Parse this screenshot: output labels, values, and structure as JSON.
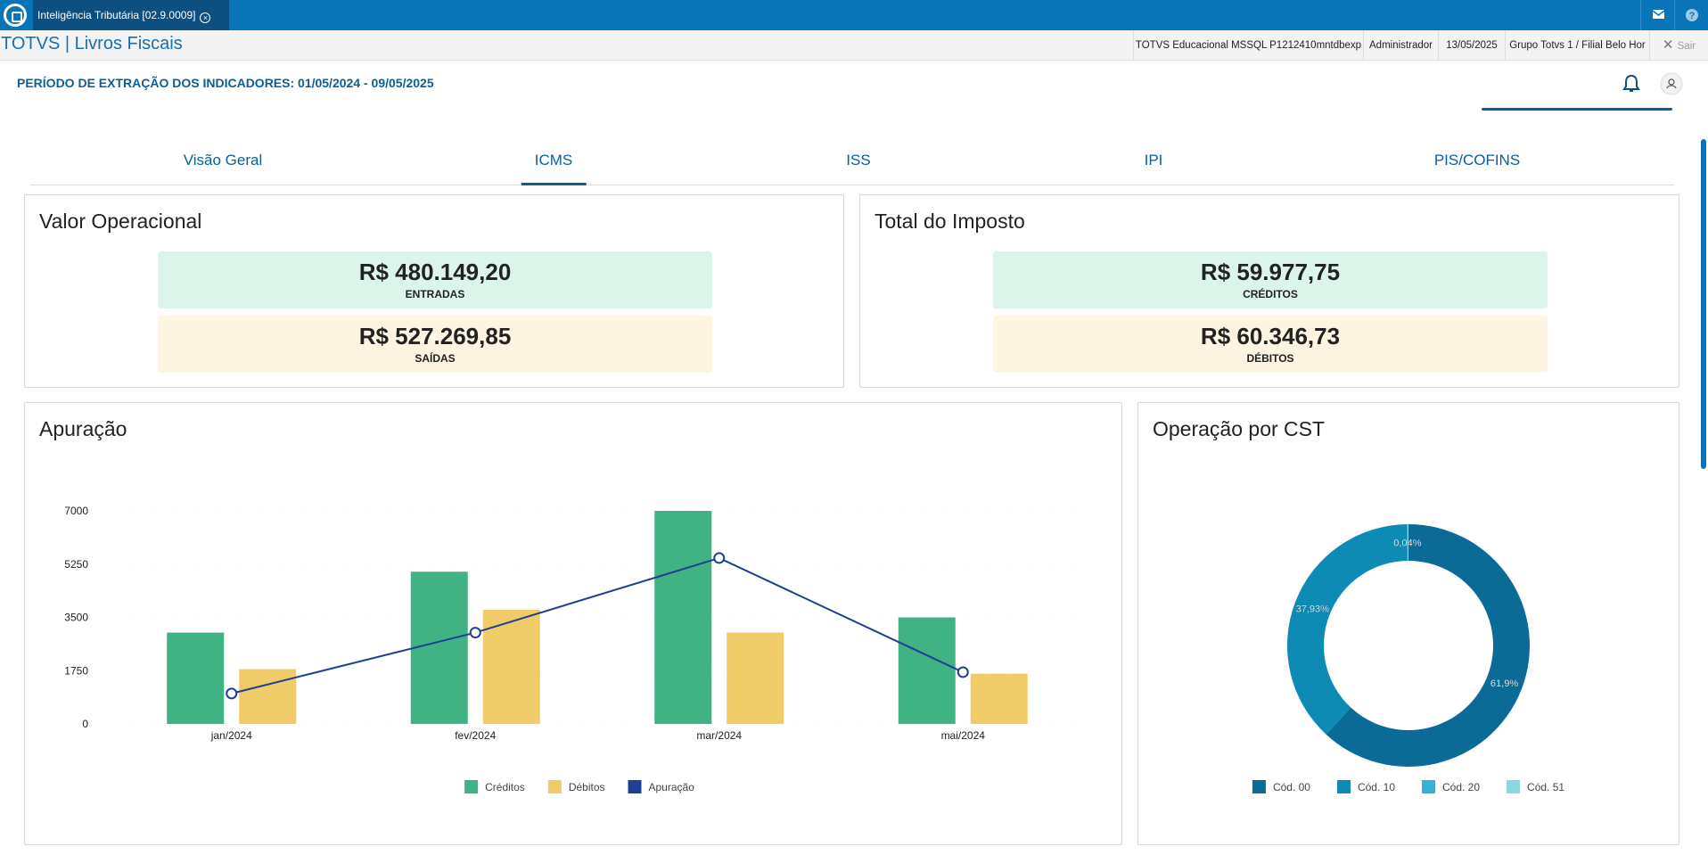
{
  "app": {
    "tab": "Inteligência Tributária [02.9.0009]",
    "title": "TOTVS | Livros Fiscais",
    "info": [
      "TOTVS Educacional MSSQL P1212410mntdbexp",
      "Administrador",
      "13/05/2025",
      "Grupo Totvs 1 / Filial Belo Hor"
    ],
    "exit": "Sair"
  },
  "period": "PERÍODO DE EXTRAÇÃO DOS INDICADORES: 01/05/2024 - 09/05/2025",
  "tabs": {
    "items": [
      "Visão Geral",
      "ICMS",
      "ISS",
      "IPI",
      "PIS/COFINS"
    ],
    "active": 1
  },
  "cards": [
    {
      "title": "Valor Operacional",
      "items": [
        {
          "value": "R$ 480.149,20",
          "label": "ENTRADAS"
        },
        {
          "value": "R$ 527.269,85",
          "label": "SAÍDAS"
        }
      ]
    },
    {
      "title": "Total do Imposto",
      "items": [
        {
          "value": "R$ 59.977,75",
          "label": "CRÉDITOS"
        },
        {
          "value": "R$ 60.346,73",
          "label": "DÉBITOS"
        }
      ]
    }
  ],
  "chart_data": [
    {
      "type": "bar",
      "title": "Apuração",
      "categories": [
        "jan/2024",
        "fev/2024",
        "mar/2024",
        "mai/2024"
      ],
      "series": [
        {
          "name": "Créditos",
          "color": "#41b283",
          "values": [
            3000,
            5000,
            7000,
            3500
          ]
        },
        {
          "name": "Débitos",
          "color": "#f0cb69",
          "values": [
            1800,
            3750,
            3000,
            1650
          ]
        },
        {
          "name": "Apuração",
          "color": "#1f3f94",
          "type": "line",
          "values": [
            1000,
            3000,
            5450,
            1700
          ]
        }
      ],
      "ylim": [
        0,
        7000
      ],
      "yticks": [
        0,
        1750,
        3500,
        5250,
        7000
      ]
    },
    {
      "type": "pie",
      "title": "Operação por CST",
      "categories": [
        "Cód. 00",
        "Cód. 10",
        "Cód. 20",
        "Cód. 51"
      ],
      "values": [
        61.9,
        37.93,
        0.04,
        0.13
      ],
      "value_labels": [
        "61,9%",
        "37,93%",
        "0,04%",
        null
      ],
      "colors": [
        "#0c6b96",
        "#0e8bb5",
        "#32b4d4",
        "#8ed6e6"
      ]
    }
  ]
}
